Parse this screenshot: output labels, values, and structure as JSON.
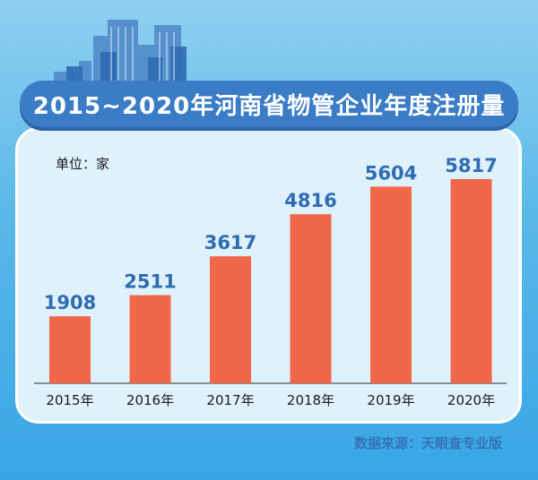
{
  "title": "2015~2020年河南省物管企业年度注册量",
  "unit_label": "单位：家",
  "source": "数据来源：天眼查专业版",
  "colors": {
    "bar": "#f0674a",
    "value_label": "#2f6cb3",
    "tick_label": "#1b1b1b",
    "title_bg": "#3a7cc6",
    "panel_bg": "#dff1fb"
  },
  "chart_data": {
    "type": "bar",
    "categories": [
      "2015年",
      "2016年",
      "2017年",
      "2018年",
      "2019年",
      "2020年"
    ],
    "values": [
      1908,
      2511,
      3617,
      4816,
      5604,
      5817
    ],
    "title": "2015~2020年河南省物管企业年度注册量",
    "xlabel": "",
    "ylabel": "",
    "ylim": [
      0,
      7000
    ],
    "grid": false,
    "legend": "none"
  }
}
